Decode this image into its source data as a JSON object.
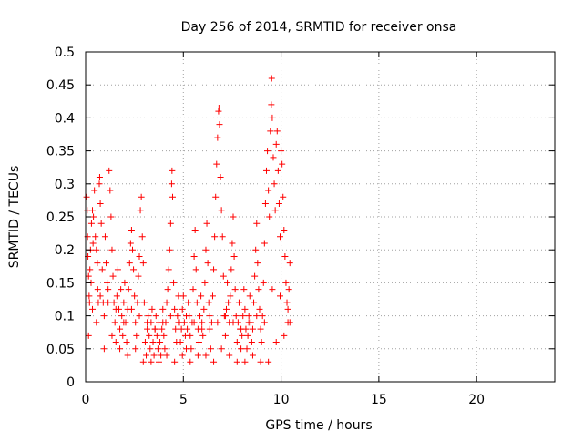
{
  "colors": {
    "background": "#ffffff",
    "axis": "#000000",
    "grid": "#a0a0a0",
    "series": "#ff0000"
  },
  "chart_data": {
    "type": "scatter",
    "title": "Day 256 of 2014, SRMTID for receiver onsa",
    "xlabel": "GPS time / hours",
    "ylabel": "SRMTID / TECUs",
    "xlim": [
      0,
      24
    ],
    "ylim": [
      0,
      0.5
    ],
    "xticks": [
      0,
      5,
      10,
      15,
      20
    ],
    "xtick_labels": [
      "0",
      "5",
      "10",
      "15",
      "20"
    ],
    "yticks": [
      0,
      0.05,
      0.1,
      0.15,
      0.2,
      0.25,
      0.3,
      0.35,
      0.4,
      0.45,
      0.5
    ],
    "ytick_labels": [
      "0",
      "0.05",
      "0.1",
      "0.15",
      "0.2",
      "0.25",
      "0.3",
      "0.35",
      "0.4",
      "0.45",
      "0.5"
    ],
    "grid": true,
    "marker": "+",
    "series": [
      {
        "name": "onsa",
        "points": [
          [
            0.05,
            0.28
          ],
          [
            0.08,
            0.26
          ],
          [
            0.1,
            0.22
          ],
          [
            0.12,
            0.19
          ],
          [
            0.15,
            0.16
          ],
          [
            0.18,
            0.13
          ],
          [
            0.2,
            0.12
          ],
          [
            0.22,
            0.17
          ],
          [
            0.25,
            0.2
          ],
          [
            0.28,
            0.15
          ],
          [
            0.3,
            0.24
          ],
          [
            0.35,
            0.26
          ],
          [
            0.38,
            0.21
          ],
          [
            0.4,
            0.25
          ],
          [
            0.45,
            0.29
          ],
          [
            0.5,
            0.22
          ],
          [
            0.55,
            0.2
          ],
          [
            0.6,
            0.18
          ],
          [
            0.62,
            0.14
          ],
          [
            0.65,
            0.12
          ],
          [
            0.7,
            0.3
          ],
          [
            0.72,
            0.31
          ],
          [
            0.75,
            0.27
          ],
          [
            0.8,
            0.24
          ],
          [
            0.85,
            0.17
          ],
          [
            0.9,
            0.12
          ],
          [
            0.95,
            0.1
          ],
          [
            1.0,
            0.22
          ],
          [
            1.05,
            0.18
          ],
          [
            1.1,
            0.15
          ],
          [
            1.15,
            0.14
          ],
          [
            1.2,
            0.32
          ],
          [
            1.25,
            0.29
          ],
          [
            1.3,
            0.25
          ],
          [
            1.35,
            0.2
          ],
          [
            1.4,
            0.16
          ],
          [
            1.45,
            0.12
          ],
          [
            1.5,
            0.09
          ],
          [
            1.55,
            0.06
          ],
          [
            1.6,
            0.13
          ],
          [
            1.65,
            0.17
          ],
          [
            1.7,
            0.11
          ],
          [
            1.75,
            0.08
          ],
          [
            1.8,
            0.14
          ],
          [
            1.85,
            0.1
          ],
          [
            1.9,
            0.07
          ],
          [
            1.95,
            0.12
          ],
          [
            2.0,
            0.15
          ],
          [
            2.05,
            0.09
          ],
          [
            2.1,
            0.06
          ],
          [
            2.15,
            0.11
          ],
          [
            2.2,
            0.14
          ],
          [
            2.25,
            0.18
          ],
          [
            2.3,
            0.21
          ],
          [
            2.35,
            0.23
          ],
          [
            2.4,
            0.2
          ],
          [
            2.45,
            0.17
          ],
          [
            2.5,
            0.13
          ],
          [
            2.55,
            0.09
          ],
          [
            2.6,
            0.07
          ],
          [
            2.65,
            0.12
          ],
          [
            2.7,
            0.16
          ],
          [
            2.75,
            0.19
          ],
          [
            2.8,
            0.26
          ],
          [
            2.85,
            0.28
          ],
          [
            2.9,
            0.22
          ],
          [
            2.95,
            0.18
          ],
          [
            3.0,
            0.12
          ],
          [
            3.05,
            0.06
          ],
          [
            3.1,
            0.04
          ],
          [
            3.15,
            0.08
          ],
          [
            3.2,
            0.1
          ],
          [
            3.25,
            0.07
          ],
          [
            3.3,
            0.05
          ],
          [
            3.35,
            0.09
          ],
          [
            3.4,
            0.11
          ],
          [
            3.45,
            0.06
          ],
          [
            3.5,
            0.04
          ],
          [
            3.55,
            0.08
          ],
          [
            3.6,
            0.1
          ],
          [
            3.65,
            0.07
          ],
          [
            3.7,
            0.05
          ],
          [
            3.75,
            0.09
          ],
          [
            3.8,
            0.06
          ],
          [
            3.85,
            0.04
          ],
          [
            3.9,
            0.08
          ],
          [
            3.95,
            0.11
          ],
          [
            4.0,
            0.07
          ],
          [
            4.05,
            0.05
          ],
          [
            4.1,
            0.09
          ],
          [
            4.15,
            0.12
          ],
          [
            4.2,
            0.14
          ],
          [
            4.25,
            0.17
          ],
          [
            4.3,
            0.2
          ],
          [
            4.35,
            0.24
          ],
          [
            4.4,
            0.3
          ],
          [
            4.42,
            0.32
          ],
          [
            4.45,
            0.28
          ],
          [
            4.5,
            0.15
          ],
          [
            4.55,
            0.11
          ],
          [
            4.6,
            0.08
          ],
          [
            4.65,
            0.06
          ],
          [
            4.7,
            0.1
          ],
          [
            4.75,
            0.13
          ],
          [
            4.8,
            0.09
          ],
          [
            4.85,
            0.06
          ],
          [
            4.9,
            0.08
          ],
          [
            4.95,
            0.11
          ],
          [
            5.0,
            0.13
          ],
          [
            5.05,
            0.09
          ],
          [
            5.1,
            0.07
          ],
          [
            5.15,
            0.05
          ],
          [
            5.2,
            0.08
          ],
          [
            5.25,
            0.12
          ],
          [
            5.3,
            0.1
          ],
          [
            5.35,
            0.07
          ],
          [
            5.4,
            0.05
          ],
          [
            5.45,
            0.09
          ],
          [
            5.5,
            0.14
          ],
          [
            5.55,
            0.19
          ],
          [
            5.6,
            0.23
          ],
          [
            5.65,
            0.17
          ],
          [
            5.7,
            0.12
          ],
          [
            5.75,
            0.08
          ],
          [
            5.8,
            0.06
          ],
          [
            5.85,
            0.1
          ],
          [
            5.9,
            0.13
          ],
          [
            5.95,
            0.09
          ],
          [
            6.0,
            0.07
          ],
          [
            6.05,
            0.11
          ],
          [
            6.1,
            0.15
          ],
          [
            6.15,
            0.2
          ],
          [
            6.2,
            0.24
          ],
          [
            6.25,
            0.18
          ],
          [
            6.3,
            0.12
          ],
          [
            6.35,
            0.08
          ],
          [
            6.4,
            0.05
          ],
          [
            6.45,
            0.09
          ],
          [
            6.5,
            0.13
          ],
          [
            6.55,
            0.17
          ],
          [
            6.6,
            0.22
          ],
          [
            6.65,
            0.28
          ],
          [
            6.7,
            0.33
          ],
          [
            6.75,
            0.37
          ],
          [
            6.8,
            0.41
          ],
          [
            6.82,
            0.415
          ],
          [
            6.85,
            0.39
          ],
          [
            6.9,
            0.31
          ],
          [
            6.95,
            0.26
          ],
          [
            7.0,
            0.22
          ],
          [
            7.05,
            0.16
          ],
          [
            7.1,
            0.1
          ],
          [
            7.15,
            0.07
          ],
          [
            7.2,
            0.11
          ],
          [
            7.25,
            0.15
          ],
          [
            7.3,
            0.12
          ],
          [
            7.35,
            0.09
          ],
          [
            7.4,
            0.13
          ],
          [
            7.45,
            0.17
          ],
          [
            7.5,
            0.21
          ],
          [
            7.55,
            0.25
          ],
          [
            7.6,
            0.19
          ],
          [
            7.65,
            0.14
          ],
          [
            7.7,
            0.1
          ],
          [
            7.75,
            0.06
          ],
          [
            7.8,
            0.09
          ],
          [
            7.85,
            0.12
          ],
          [
            7.9,
            0.08
          ],
          [
            7.95,
            0.05
          ],
          [
            8.0,
            0.07
          ],
          [
            8.05,
            0.1
          ],
          [
            8.1,
            0.14
          ],
          [
            8.15,
            0.11
          ],
          [
            8.2,
            0.08
          ],
          [
            8.25,
            0.05
          ],
          [
            8.3,
            0.07
          ],
          [
            8.35,
            0.1
          ],
          [
            8.4,
            0.13
          ],
          [
            8.45,
            0.09
          ],
          [
            8.5,
            0.06
          ],
          [
            8.55,
            0.08
          ],
          [
            8.6,
            0.12
          ],
          [
            8.65,
            0.16
          ],
          [
            8.7,
            0.2
          ],
          [
            8.75,
            0.24
          ],
          [
            8.8,
            0.18
          ],
          [
            8.85,
            0.14
          ],
          [
            8.9,
            0.11
          ],
          [
            8.95,
            0.08
          ],
          [
            9.0,
            0.06
          ],
          [
            9.05,
            0.1
          ],
          [
            9.1,
            0.15
          ],
          [
            9.15,
            0.21
          ],
          [
            9.2,
            0.27
          ],
          [
            9.25,
            0.32
          ],
          [
            9.3,
            0.35
          ],
          [
            9.35,
            0.29
          ],
          [
            9.4,
            0.25
          ],
          [
            9.45,
            0.38
          ],
          [
            9.5,
            0.42
          ],
          [
            9.52,
            0.46
          ],
          [
            9.55,
            0.4
          ],
          [
            9.6,
            0.34
          ],
          [
            9.65,
            0.3
          ],
          [
            9.7,
            0.26
          ],
          [
            9.75,
            0.36
          ],
          [
            9.8,
            0.38
          ],
          [
            9.85,
            0.32
          ],
          [
            9.9,
            0.27
          ],
          [
            9.95,
            0.22
          ],
          [
            10.0,
            0.35
          ],
          [
            10.05,
            0.33
          ],
          [
            10.1,
            0.28
          ],
          [
            10.15,
            0.23
          ],
          [
            10.2,
            0.19
          ],
          [
            10.25,
            0.15
          ],
          [
            10.3,
            0.12
          ],
          [
            10.35,
            0.09
          ],
          [
            10.4,
            0.14
          ],
          [
            10.45,
            0.18
          ],
          [
            0.15,
            0.07
          ],
          [
            0.55,
            0.09
          ],
          [
            0.95,
            0.05
          ],
          [
            1.35,
            0.07
          ],
          [
            1.75,
            0.05
          ],
          [
            2.15,
            0.04
          ],
          [
            2.55,
            0.05
          ],
          [
            2.95,
            0.03
          ],
          [
            3.35,
            0.03
          ],
          [
            3.75,
            0.03
          ],
          [
            4.15,
            0.04
          ],
          [
            4.55,
            0.03
          ],
          [
            4.95,
            0.04
          ],
          [
            5.35,
            0.03
          ],
          [
            5.75,
            0.04
          ],
          [
            6.15,
            0.04
          ],
          [
            6.55,
            0.03
          ],
          [
            6.95,
            0.05
          ],
          [
            7.35,
            0.04
          ],
          [
            7.75,
            0.03
          ],
          [
            8.15,
            0.03
          ],
          [
            8.55,
            0.04
          ],
          [
            8.95,
            0.03
          ],
          [
            9.35,
            0.03
          ],
          [
            9.75,
            0.06
          ],
          [
            10.15,
            0.07
          ],
          [
            10.45,
            0.09
          ],
          [
            0.35,
            0.11
          ],
          [
            0.75,
            0.13
          ],
          [
            1.15,
            0.12
          ],
          [
            1.55,
            0.11
          ],
          [
            1.95,
            0.09
          ],
          [
            2.35,
            0.11
          ],
          [
            2.75,
            0.1
          ],
          [
            3.15,
            0.09
          ],
          [
            3.55,
            0.08
          ],
          [
            3.95,
            0.09
          ],
          [
            4.35,
            0.1
          ],
          [
            4.75,
            0.09
          ],
          [
            5.15,
            0.1
          ],
          [
            5.55,
            0.09
          ],
          [
            5.95,
            0.08
          ],
          [
            6.35,
            0.1
          ],
          [
            6.75,
            0.09
          ],
          [
            7.15,
            0.1
          ],
          [
            7.55,
            0.09
          ],
          [
            7.95,
            0.08
          ],
          [
            8.35,
            0.09
          ],
          [
            8.75,
            0.1
          ],
          [
            9.15,
            0.09
          ],
          [
            9.55,
            0.14
          ],
          [
            9.95,
            0.13
          ],
          [
            10.35,
            0.11
          ]
        ]
      }
    ]
  }
}
